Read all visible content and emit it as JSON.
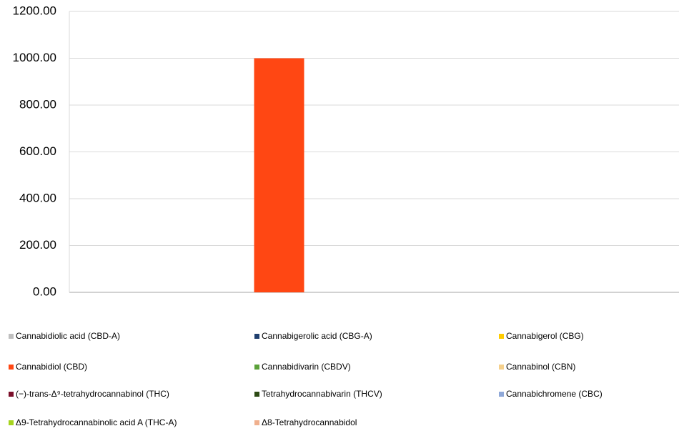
{
  "chart_data": {
    "type": "bar",
    "categories": [
      null
    ],
    "series": [
      {
        "name": "Cannabidiolic acid (CBD-A)",
        "color": "#bfbfbf",
        "values": [
          0
        ]
      },
      {
        "name": "Cannabigerolic acid (CBG-A)",
        "color": "#1f3f6e",
        "values": [
          0
        ]
      },
      {
        "name": "Cannabigerol (CBG)",
        "color": "#ffcc00",
        "values": [
          0
        ]
      },
      {
        "name": "Cannabidiol (CBD)",
        "color": "#ff4713",
        "values": [
          1000
        ]
      },
      {
        "name": "Cannabidivarin (CBDV)",
        "color": "#5ba13a",
        "values": [
          0
        ]
      },
      {
        "name": "Cannabinol (CBN)",
        "color": "#f5d08c",
        "values": [
          0
        ]
      },
      {
        "name": "(−)-trans-Δ⁹-tetrahydrocannabinol (THC)",
        "color": "#7b0f2a",
        "values": [
          0
        ]
      },
      {
        "name": "Tetrahydrocannabivarin (THCV)",
        "color": "#2d4a14",
        "values": [
          0
        ]
      },
      {
        "name": "Cannabichromene (CBC)",
        "color": "#8fa8d8",
        "values": [
          0
        ]
      },
      {
        "name": "Δ9-Tetrahydrocannabinolic acid A (THC-A)",
        "color": "#a6d41e",
        "values": [
          0
        ]
      },
      {
        "name": "Δ8-Tetrahydrocannabidol",
        "color": "#f0b08e",
        "values": [
          0
        ]
      }
    ],
    "ylim": [
      0,
      1200
    ],
    "yticks": [
      {
        "value": 0,
        "label": "0.00"
      },
      {
        "value": 200,
        "label": "200.00"
      },
      {
        "value": 400,
        "label": "400.00"
      },
      {
        "value": 600,
        "label": "600.00"
      },
      {
        "value": 800,
        "label": "800.00"
      },
      {
        "value": 1000,
        "label": "1000.00"
      },
      {
        "value": 1200,
        "label": "1200.00"
      }
    ],
    "grid": true,
    "legend": "bottom"
  }
}
